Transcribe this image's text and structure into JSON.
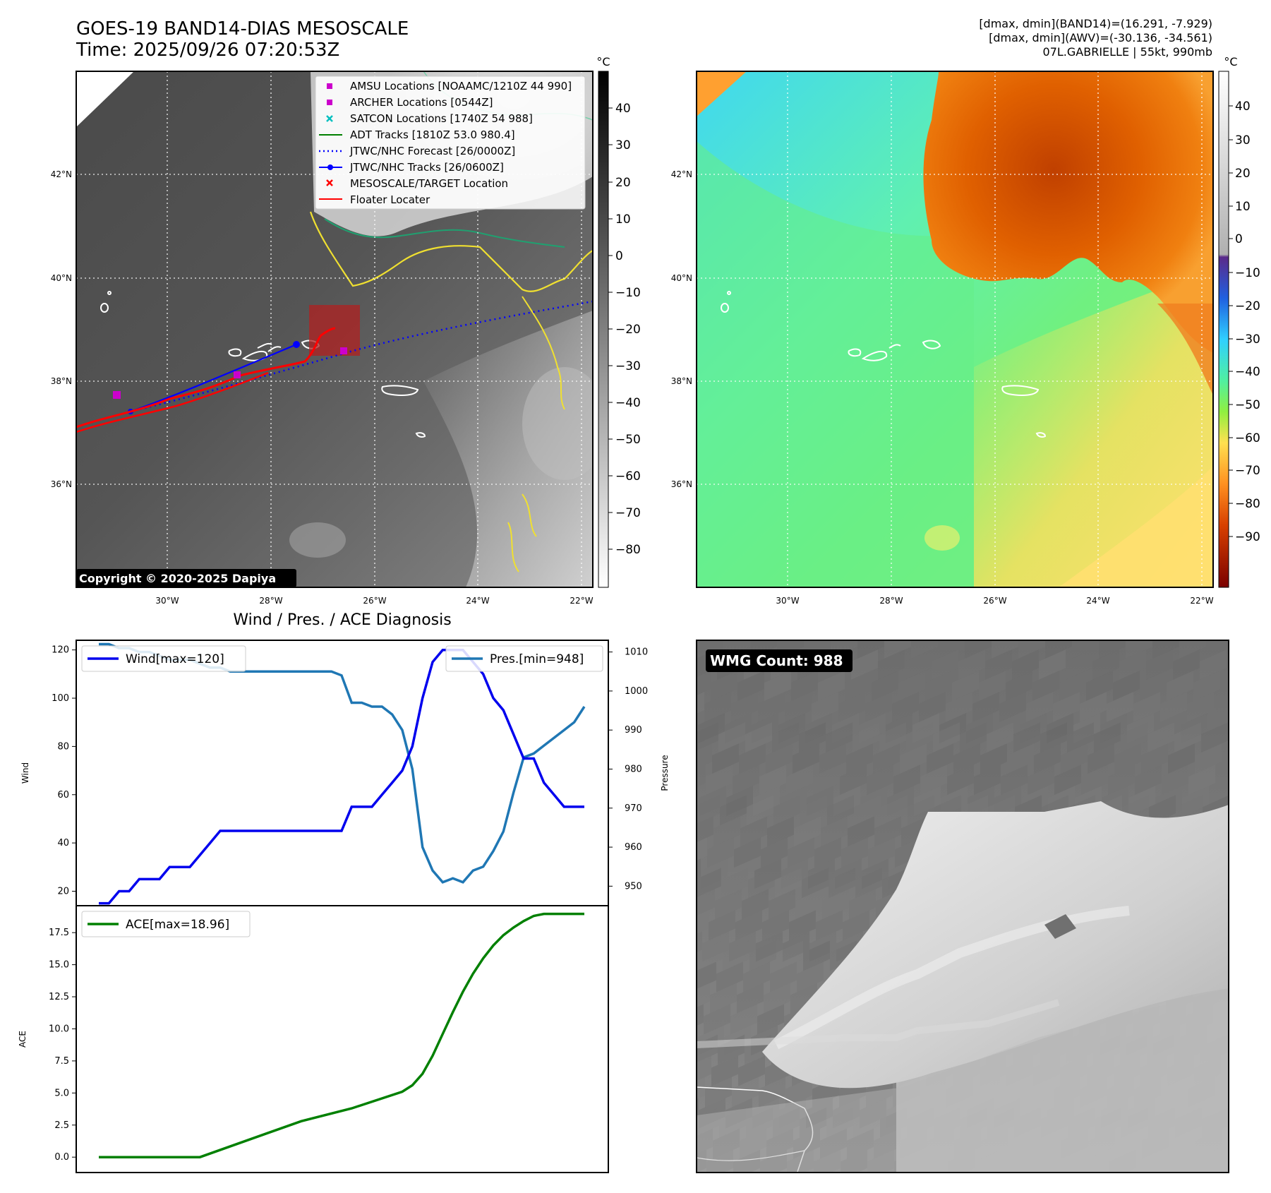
{
  "header": {
    "title_line1": "GOES-19 BAND14-DIAS MESOSCALE",
    "title_line2": "Time: 2025/09/26 07:20:53Z",
    "info_line1": "[dmax, dmin](BAND14)=(16.291, -7.929)",
    "info_line2": "[dmax, dmin](AWV)=(-30.136, -34.561)",
    "info_line3": "07L.GABRIELLE | 55kt, 990mb"
  },
  "map_axes": {
    "lon_labels": [
      "30°W",
      "28°W",
      "26°W",
      "24°W",
      "22°W"
    ],
    "lat_labels": [
      "42°N",
      "40°N",
      "38°N",
      "36°N"
    ]
  },
  "colorbar_left": {
    "unit": "°C",
    "ticks": [
      "40",
      "30",
      "20",
      "10",
      "0",
      "−10",
      "−20",
      "−30",
      "−40",
      "−50",
      "−60",
      "−70",
      "−80"
    ]
  },
  "colorbar_right": {
    "unit": "°C",
    "ticks": [
      "40",
      "30",
      "20",
      "10",
      "0",
      "−10",
      "−20",
      "−30",
      "−40",
      "−50",
      "−60",
      "−70",
      "−80",
      "−90"
    ]
  },
  "legend": [
    {
      "label": "AMSU Locations [NOAAMC/1210Z 44 990]",
      "symbol": "square",
      "color": "#cc00cc"
    },
    {
      "label": "ARCHER Locations [0544Z]",
      "symbol": "square",
      "color": "#cc00cc"
    },
    {
      "label": "SATCON Locations [1740Z 54 988]",
      "symbol": "x",
      "color": "#00bfbf"
    },
    {
      "label": "ADT Tracks [1810Z 53.0 980.4]",
      "symbol": "line",
      "color": "#008000"
    },
    {
      "label": "JTWC/NHC Forecast [26/0000Z]",
      "symbol": "dotted",
      "color": "#0000ff"
    },
    {
      "label": "JTWC/NHC Tracks [26/0600Z]",
      "symbol": "line-dot",
      "color": "#0000ff"
    },
    {
      "label": "MESOSCALE/TARGET Location",
      "symbol": "x",
      "color": "#ff0000"
    },
    {
      "label": "Floater Locater",
      "symbol": "line",
      "color": "#ff0000"
    }
  ],
  "copyright": "Copyright © 2020-2025 Dapiya",
  "wmg_label": "WMG Count: 988",
  "chart_data": [
    {
      "type": "line",
      "title": "Wind / Pres. / ACE Diagnosis",
      "ylabel": "Wind",
      "y2label": "Pressure",
      "ylim": [
        14,
        124
      ],
      "y2lim": [
        945,
        1013
      ],
      "yticks": [
        "120",
        "100",
        "80",
        "60",
        "40",
        "20"
      ],
      "y2ticks": [
        "1010",
        "1000",
        "990",
        "980",
        "970",
        "960",
        "950"
      ],
      "series": [
        {
          "name": "Wind[max=120]",
          "color": "#0000ee",
          "axis": "left",
          "x": [
            0,
            1,
            2,
            3,
            4,
            5,
            6,
            7,
            8,
            9,
            10,
            11,
            12,
            13,
            14,
            15,
            16,
            17,
            18,
            19,
            20,
            21,
            22,
            23,
            24,
            25,
            26,
            27,
            28,
            29,
            30,
            31,
            32,
            33,
            34,
            35,
            36,
            37,
            38,
            39,
            40,
            41,
            42,
            43,
            44,
            45,
            46,
            47,
            48
          ],
          "values": [
            15,
            15,
            20,
            20,
            25,
            25,
            25,
            30,
            30,
            30,
            35,
            40,
            45,
            45,
            45,
            45,
            45,
            45,
            45,
            45,
            45,
            45,
            45,
            45,
            45,
            55,
            55,
            55,
            60,
            65,
            70,
            80,
            100,
            115,
            120,
            120,
            120,
            115,
            110,
            100,
            95,
            85,
            75,
            75,
            65,
            60,
            55,
            55,
            55
          ]
        },
        {
          "name": "Pres.[min=948]",
          "color": "#1f77b4",
          "axis": "right",
          "x": [
            0,
            1,
            2,
            3,
            4,
            5,
            6,
            7,
            8,
            9,
            10,
            11,
            12,
            13,
            14,
            15,
            16,
            17,
            18,
            19,
            20,
            21,
            22,
            23,
            24,
            25,
            26,
            27,
            28,
            29,
            30,
            31,
            32,
            33,
            34,
            35,
            36,
            37,
            38,
            39,
            40,
            41,
            42,
            43,
            44,
            45,
            46,
            47,
            48
          ],
          "values": [
            1012,
            1012,
            1011,
            1011,
            1010,
            1010,
            1009,
            1008,
            1008,
            1008,
            1007,
            1006,
            1006,
            1005,
            1005,
            1005,
            1005,
            1005,
            1005,
            1005,
            1005,
            1005,
            1005,
            1005,
            1004,
            997,
            997,
            996,
            996,
            994,
            990,
            980,
            960,
            954,
            951,
            952,
            951,
            954,
            955,
            959,
            964,
            974,
            983,
            984,
            986,
            988,
            990,
            992,
            996
          ]
        }
      ]
    },
    {
      "type": "line",
      "ylabel": "ACE",
      "ylim": [
        -1.2,
        19.6
      ],
      "yticks": [
        "17.5",
        "15.0",
        "12.5",
        "10.0",
        "7.5",
        "5.0",
        "2.5",
        "0.0"
      ],
      "series": [
        {
          "name": "ACE[max=18.96]",
          "color": "#008000",
          "x": [
            0,
            10,
            20,
            25,
            30,
            31,
            32,
            33,
            34,
            35,
            36,
            37,
            38,
            39,
            40,
            41,
            42,
            43,
            44,
            45,
            46,
            47,
            48
          ],
          "values": [
            0,
            0,
            2.8,
            3.8,
            5.1,
            5.6,
            6.5,
            7.9,
            9.6,
            11.3,
            12.9,
            14.3,
            15.5,
            16.5,
            17.3,
            17.9,
            18.4,
            18.8,
            18.96,
            18.96,
            18.96,
            18.96,
            18.96
          ]
        }
      ]
    }
  ]
}
